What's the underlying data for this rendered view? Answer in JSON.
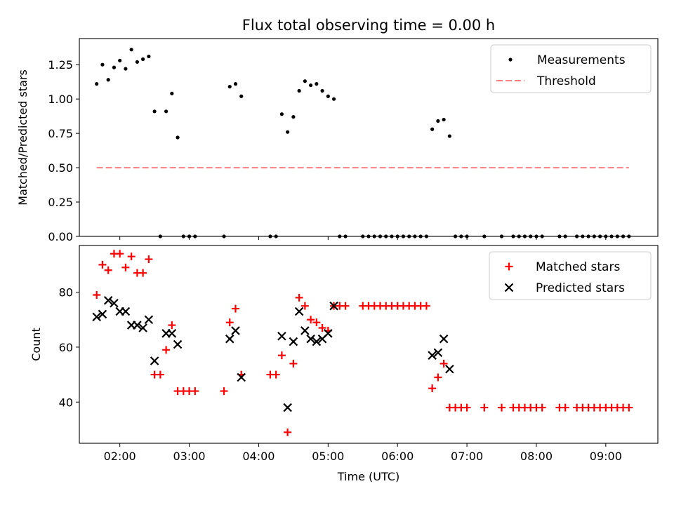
{
  "chart_data": [
    {
      "type": "scatter",
      "title": "Flux total observing time = 0.00 h",
      "xlabel": "",
      "ylabel": "Matched/Predicted stars",
      "xlim": [
        "01:25",
        "09:45"
      ],
      "ylim": [
        0,
        1.44
      ],
      "yticks": [
        "0.00",
        "0.25",
        "0.50",
        "0.75",
        "1.00",
        "1.25"
      ],
      "grid": false,
      "legend_position": "top-right",
      "series": [
        {
          "name": "Measurements",
          "color": "#000000",
          "marker": "dot",
          "points": [
            [
              "01:40",
              1.11
            ],
            [
              "01:45",
              1.25
            ],
            [
              "01:50",
              1.14
            ],
            [
              "01:55",
              1.23
            ],
            [
              "02:00",
              1.28
            ],
            [
              "02:05",
              1.22
            ],
            [
              "02:10",
              1.36
            ],
            [
              "02:15",
              1.27
            ],
            [
              "02:20",
              1.29
            ],
            [
              "02:25",
              1.31
            ],
            [
              "02:30",
              0.91
            ],
            [
              "02:35",
              0.0
            ],
            [
              "02:40",
              0.91
            ],
            [
              "02:45",
              1.04
            ],
            [
              "02:50",
              0.72
            ],
            [
              "02:55",
              0.0
            ],
            [
              "03:00",
              0.0
            ],
            [
              "03:05",
              0.0
            ],
            [
              "03:30",
              0.0
            ],
            [
              "03:35",
              1.09
            ],
            [
              "03:40",
              1.11
            ],
            [
              "03:45",
              1.02
            ],
            [
              "04:10",
              0.0
            ],
            [
              "04:15",
              0.0
            ],
            [
              "04:20",
              0.89
            ],
            [
              "04:25",
              0.76
            ],
            [
              "04:30",
              0.87
            ],
            [
              "04:35",
              1.06
            ],
            [
              "04:40",
              1.13
            ],
            [
              "04:45",
              1.1
            ],
            [
              "04:50",
              1.11
            ],
            [
              "04:55",
              1.06
            ],
            [
              "05:00",
              1.02
            ],
            [
              "05:05",
              1.0
            ],
            [
              "05:10",
              0.0
            ],
            [
              "05:15",
              0.0
            ],
            [
              "05:30",
              0.0
            ],
            [
              "05:35",
              0.0
            ],
            [
              "05:40",
              0.0
            ],
            [
              "05:45",
              0.0
            ],
            [
              "05:50",
              0.0
            ],
            [
              "05:55",
              0.0
            ],
            [
              "06:00",
              0.0
            ],
            [
              "06:05",
              0.0
            ],
            [
              "06:10",
              0.0
            ],
            [
              "06:15",
              0.0
            ],
            [
              "06:20",
              0.0
            ],
            [
              "06:25",
              0.0
            ],
            [
              "06:30",
              0.78
            ],
            [
              "06:35",
              0.84
            ],
            [
              "06:40",
              0.85
            ],
            [
              "06:45",
              0.73
            ],
            [
              "06:50",
              0.0
            ],
            [
              "06:55",
              0.0
            ],
            [
              "07:00",
              0.0
            ],
            [
              "07:15",
              0.0
            ],
            [
              "07:30",
              0.0
            ],
            [
              "07:40",
              0.0
            ],
            [
              "07:45",
              0.0
            ],
            [
              "07:50",
              0.0
            ],
            [
              "07:55",
              0.0
            ],
            [
              "08:00",
              0.0
            ],
            [
              "08:05",
              0.0
            ],
            [
              "08:20",
              0.0
            ],
            [
              "08:25",
              0.0
            ],
            [
              "08:35",
              0.0
            ],
            [
              "08:40",
              0.0
            ],
            [
              "08:45",
              0.0
            ],
            [
              "08:50",
              0.0
            ],
            [
              "08:55",
              0.0
            ],
            [
              "09:00",
              0.0
            ],
            [
              "09:05",
              0.0
            ],
            [
              "09:10",
              0.0
            ],
            [
              "09:15",
              0.0
            ],
            [
              "09:20",
              0.0
            ]
          ]
        },
        {
          "name": "Threshold",
          "color": "#ff7f7f",
          "style": "dashed",
          "points": [
            [
              "01:40",
              0.5
            ],
            [
              "09:20",
              0.5
            ]
          ]
        }
      ]
    },
    {
      "type": "scatter",
      "title": "",
      "xlabel": "Time (UTC)",
      "ylabel": "Count",
      "xlim": [
        "01:25",
        "09:45"
      ],
      "ylim": [
        25,
        97
      ],
      "yticks": [
        "40",
        "60",
        "80"
      ],
      "xticks": [
        "02:00",
        "03:00",
        "04:00",
        "05:00",
        "06:00",
        "07:00",
        "08:00",
        "09:00"
      ],
      "grid": false,
      "legend_position": "top-right",
      "series": [
        {
          "name": "Matched stars",
          "color": "#ff0000",
          "marker": "plus",
          "points": [
            [
              "01:40",
              79
            ],
            [
              "01:45",
              90
            ],
            [
              "01:50",
              88
            ],
            [
              "01:55",
              94
            ],
            [
              "02:00",
              94
            ],
            [
              "02:05",
              89
            ],
            [
              "02:10",
              93
            ],
            [
              "02:15",
              87
            ],
            [
              "02:20",
              87
            ],
            [
              "02:25",
              92
            ],
            [
              "02:30",
              50
            ],
            [
              "02:35",
              50
            ],
            [
              "02:40",
              59
            ],
            [
              "02:45",
              68
            ],
            [
              "02:50",
              44
            ],
            [
              "02:55",
              44
            ],
            [
              "03:00",
              44
            ],
            [
              "03:05",
              44
            ],
            [
              "03:30",
              44
            ],
            [
              "03:35",
              69
            ],
            [
              "03:40",
              74
            ],
            [
              "03:45",
              50
            ],
            [
              "04:10",
              50
            ],
            [
              "04:15",
              50
            ],
            [
              "04:20",
              57
            ],
            [
              "04:25",
              29
            ],
            [
              "04:30",
              54
            ],
            [
              "04:35",
              78
            ],
            [
              "04:40",
              75
            ],
            [
              "04:45",
              70
            ],
            [
              "04:50",
              69
            ],
            [
              "04:55",
              67
            ],
            [
              "05:00",
              66
            ],
            [
              "05:05",
              75
            ],
            [
              "05:10",
              75
            ],
            [
              "05:15",
              75
            ],
            [
              "05:30",
              75
            ],
            [
              "05:35",
              75
            ],
            [
              "05:40",
              75
            ],
            [
              "05:45",
              75
            ],
            [
              "05:50",
              75
            ],
            [
              "05:55",
              75
            ],
            [
              "06:00",
              75
            ],
            [
              "06:05",
              75
            ],
            [
              "06:10",
              75
            ],
            [
              "06:15",
              75
            ],
            [
              "06:20",
              75
            ],
            [
              "06:25",
              75
            ],
            [
              "06:30",
              45
            ],
            [
              "06:35",
              49
            ],
            [
              "06:40",
              54
            ],
            [
              "06:45",
              38
            ],
            [
              "06:50",
              38
            ],
            [
              "06:55",
              38
            ],
            [
              "07:00",
              38
            ],
            [
              "07:15",
              38
            ],
            [
              "07:30",
              38
            ],
            [
              "07:40",
              38
            ],
            [
              "07:45",
              38
            ],
            [
              "07:50",
              38
            ],
            [
              "07:55",
              38
            ],
            [
              "08:00",
              38
            ],
            [
              "08:05",
              38
            ],
            [
              "08:20",
              38
            ],
            [
              "08:25",
              38
            ],
            [
              "08:35",
              38
            ],
            [
              "08:40",
              38
            ],
            [
              "08:45",
              38
            ],
            [
              "08:50",
              38
            ],
            [
              "08:55",
              38
            ],
            [
              "09:00",
              38
            ],
            [
              "09:05",
              38
            ],
            [
              "09:10",
              38
            ],
            [
              "09:15",
              38
            ],
            [
              "09:20",
              38
            ]
          ]
        },
        {
          "name": "Predicted stars",
          "color": "#000000",
          "marker": "cross",
          "points": [
            [
              "01:40",
              71
            ],
            [
              "01:45",
              72
            ],
            [
              "01:50",
              77
            ],
            [
              "01:55",
              76
            ],
            [
              "02:00",
              73
            ],
            [
              "02:05",
              73
            ],
            [
              "02:10",
              68
            ],
            [
              "02:15",
              68
            ],
            [
              "02:20",
              67
            ],
            [
              "02:25",
              70
            ],
            [
              "02:30",
              55
            ],
            [
              "02:40",
              65
            ],
            [
              "02:45",
              65
            ],
            [
              "02:50",
              61
            ],
            [
              "03:35",
              63
            ],
            [
              "03:40",
              66
            ],
            [
              "03:45",
              49
            ],
            [
              "04:20",
              64
            ],
            [
              "04:25",
              38
            ],
            [
              "04:30",
              62
            ],
            [
              "04:35",
              73
            ],
            [
              "04:40",
              66
            ],
            [
              "04:45",
              63
            ],
            [
              "04:50",
              62
            ],
            [
              "04:55",
              63
            ],
            [
              "05:00",
              65
            ],
            [
              "05:05",
              75
            ],
            [
              "06:30",
              57
            ],
            [
              "06:35",
              58
            ],
            [
              "06:40",
              63
            ],
            [
              "06:45",
              52
            ]
          ]
        }
      ]
    }
  ]
}
